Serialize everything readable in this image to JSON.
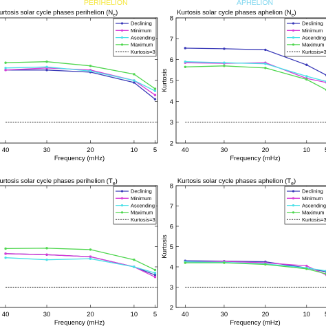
{
  "headers": [
    {
      "text": "PERIHELION",
      "color": "#f5e63a"
    },
    {
      "text": "APHELION",
      "color": "#7fd6ef"
    }
  ],
  "legend_labels": [
    "Declining",
    "Minimum",
    "Ascending",
    "Maximum",
    "Kurtosis=3"
  ],
  "colors": {
    "Declining": "#3a3ab8",
    "Minimum": "#d63ad6",
    "Ascending": "#49e0e8",
    "Maximum": "#4fd64f",
    "Kurtosis=3": "#000000"
  },
  "chart_data": [
    {
      "type": "line",
      "title": "Kurtosis solar cycle phases perihelion (N",
      "title_sub": "e",
      "xlabel": "Frequency (mHz)",
      "ylabel": "",
      "xticks": [
        "40",
        "30",
        "20",
        "10",
        "5"
      ],
      "yticks": [],
      "ylim": [
        2,
        8
      ],
      "x": [
        40,
        30,
        20,
        10,
        5
      ],
      "series": [
        {
          "name": "Declining",
          "values": [
            5.5,
            5.5,
            5.4,
            4.9,
            4.1
          ]
        },
        {
          "name": "Minimum",
          "values": [
            5.5,
            5.6,
            5.5,
            5.0,
            4.3
          ]
        },
        {
          "name": "Ascending",
          "values": [
            5.6,
            5.65,
            5.45,
            5.0,
            4.5
          ]
        },
        {
          "name": "Maximum",
          "values": [
            5.85,
            5.9,
            5.7,
            5.3,
            4.6
          ]
        },
        {
          "name": "Kurtosis=3",
          "values": [
            3,
            3,
            3,
            3,
            3
          ]
        }
      ],
      "legend": "top-right"
    },
    {
      "type": "line",
      "title": "Kurtosis solar cycle phases aphelion (N",
      "title_sub": "e",
      "xlabel": "Frequency (mHz)",
      "ylabel": "Kurtosis",
      "xticks": [
        "40",
        "30",
        "20",
        "10",
        "5"
      ],
      "yticks": [
        "2",
        "3",
        "4",
        "5",
        "6",
        "7",
        "8"
      ],
      "ylim": [
        2,
        8
      ],
      "x": [
        40,
        30,
        20,
        10,
        5
      ],
      "series": [
        {
          "name": "Declining",
          "values": [
            6.55,
            6.52,
            6.47,
            5.75,
            5.25
          ]
        },
        {
          "name": "Minimum",
          "values": [
            5.85,
            5.82,
            5.85,
            5.1,
            4.9
          ]
        },
        {
          "name": "Ascending",
          "values": [
            5.9,
            5.85,
            5.8,
            5.2,
            4.95
          ]
        },
        {
          "name": "Maximum",
          "values": [
            5.65,
            5.7,
            5.6,
            5.05,
            4.55
          ]
        },
        {
          "name": "Kurtosis=3",
          "values": [
            3,
            3,
            3,
            3,
            3
          ]
        }
      ],
      "legend": "top-right"
    },
    {
      "type": "line",
      "title": "Kurtosis solar cycle phases perihelion (T",
      "title_sub": "e",
      "xlabel": "Frequency (mHz)",
      "ylabel": "",
      "xticks": [
        "40",
        "30",
        "20",
        "10",
        "5"
      ],
      "yticks": [],
      "ylim": [
        2,
        8
      ],
      "x": [
        40,
        30,
        20,
        10,
        5
      ],
      "series": [
        {
          "name": "Declining",
          "values": [
            4.65,
            4.6,
            4.5,
            4.0,
            3.6
          ]
        },
        {
          "name": "Minimum",
          "values": [
            4.65,
            4.6,
            4.5,
            4.0,
            3.5
          ]
        },
        {
          "name": "Ascending",
          "values": [
            4.45,
            4.35,
            4.4,
            4.0,
            3.7
          ]
        },
        {
          "name": "Maximum",
          "values": [
            4.9,
            4.92,
            4.85,
            4.35,
            3.85
          ]
        },
        {
          "name": "Kurtosis=3",
          "values": [
            3,
            3,
            3,
            3,
            3
          ]
        }
      ],
      "legend": "top-right"
    },
    {
      "type": "line",
      "title": "Kurtosis solar cycle phases aphelion (T",
      "title_sub": "e",
      "xlabel": "Frequency (mHz)",
      "ylabel": "Kurtosis",
      "xticks": [
        "40",
        "30",
        "20",
        "10",
        "5"
      ],
      "yticks": [
        "2",
        "3",
        "4",
        "5",
        "6",
        "7",
        "8"
      ],
      "ylim": [
        2,
        8
      ],
      "x": [
        40,
        30,
        20,
        10,
        5
      ],
      "series": [
        {
          "name": "Declining",
          "values": [
            4.3,
            4.28,
            4.25,
            3.95,
            3.75
          ]
        },
        {
          "name": "Minimum",
          "values": [
            4.25,
            4.27,
            4.2,
            4.05,
            3.6
          ]
        },
        {
          "name": "Ascending",
          "values": [
            4.25,
            4.22,
            4.15,
            3.95,
            3.8
          ]
        },
        {
          "name": "Maximum",
          "values": [
            4.2,
            4.2,
            4.12,
            3.9,
            3.65
          ]
        },
        {
          "name": "Kurtosis=3",
          "values": [
            3,
            3,
            3,
            3,
            3
          ]
        }
      ],
      "legend": "top-right"
    }
  ]
}
